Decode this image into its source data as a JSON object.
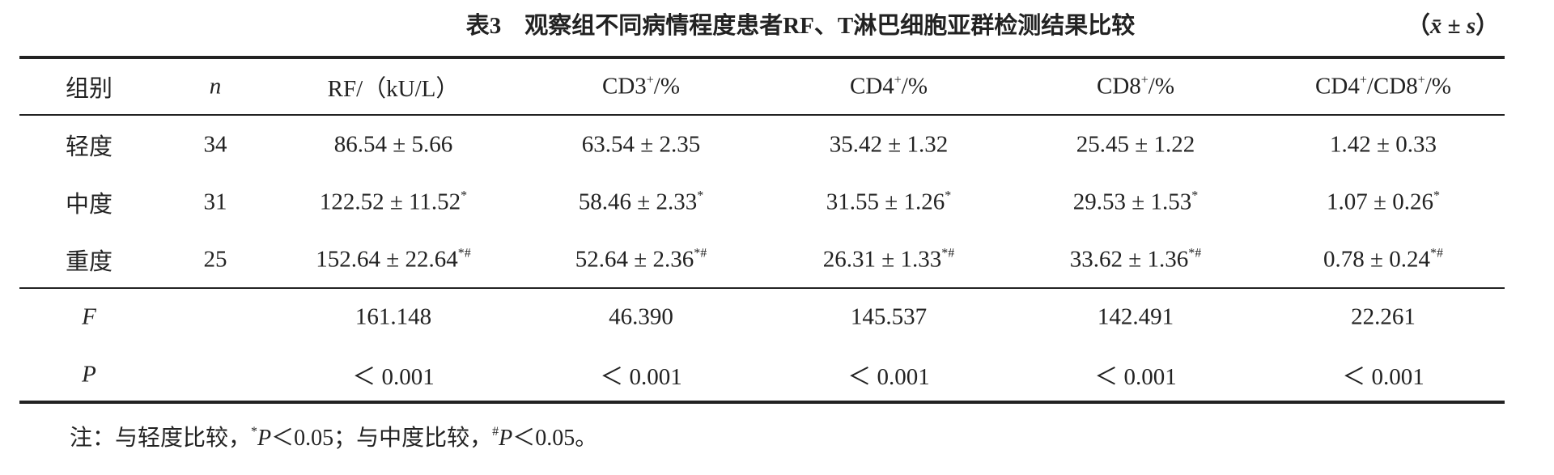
{
  "title": {
    "main": "表3　观察组不同病情程度患者RF、T淋巴细胞亚群检测结果比较",
    "unit": [
      {
        "text": "（"
      },
      {
        "text": "x̄",
        "italic": true
      },
      {
        "text": " ± "
      },
      {
        "text": "s",
        "italic": true
      },
      {
        "text": "）"
      }
    ]
  },
  "table": {
    "header": [
      [
        {
          "text": "组别"
        }
      ],
      [
        {
          "text": "n",
          "italic": true
        }
      ],
      [
        {
          "text": "RF/（kU/L）"
        }
      ],
      [
        {
          "text": "CD3"
        },
        {
          "sup": "+"
        },
        {
          "text": "/%"
        }
      ],
      [
        {
          "text": "CD4"
        },
        {
          "sup": "+"
        },
        {
          "text": "/%"
        }
      ],
      [
        {
          "text": "CD8"
        },
        {
          "sup": "+"
        },
        {
          "text": "/%"
        }
      ],
      [
        {
          "text": "CD4"
        },
        {
          "sup": "+"
        },
        {
          "text": "/CD8"
        },
        {
          "sup": "+"
        },
        {
          "text": "/%"
        }
      ]
    ],
    "rows": [
      [
        [
          {
            "text": "轻度"
          }
        ],
        [
          {
            "text": "34"
          }
        ],
        [
          {
            "text": "86.54 ± 5.66"
          }
        ],
        [
          {
            "text": "63.54 ± 2.35"
          }
        ],
        [
          {
            "text": "35.42 ± 1.32"
          }
        ],
        [
          {
            "text": "25.45 ± 1.22"
          }
        ],
        [
          {
            "text": "1.42 ± 0.33"
          }
        ]
      ],
      [
        [
          {
            "text": "中度"
          }
        ],
        [
          {
            "text": "31"
          }
        ],
        [
          {
            "text": "122.52 ± 11.52"
          },
          {
            "sup": "*"
          }
        ],
        [
          {
            "text": "58.46 ± 2.33"
          },
          {
            "sup": "*"
          }
        ],
        [
          {
            "text": "31.55 ± 1.26"
          },
          {
            "sup": "*"
          }
        ],
        [
          {
            "text": "29.53 ± 1.53"
          },
          {
            "sup": "*"
          }
        ],
        [
          {
            "text": "1.07 ± 0.26"
          },
          {
            "sup": "*"
          }
        ]
      ],
      [
        [
          {
            "text": "重度"
          }
        ],
        [
          {
            "text": "25"
          }
        ],
        [
          {
            "text": "152.64 ± 22.64"
          },
          {
            "sup": "*#"
          }
        ],
        [
          {
            "text": "52.64 ± 2.36"
          },
          {
            "sup": "*#"
          }
        ],
        [
          {
            "text": "26.31 ± 1.33"
          },
          {
            "sup": "*#"
          }
        ],
        [
          {
            "text": "33.62 ± 1.36"
          },
          {
            "sup": "*#"
          }
        ],
        [
          {
            "text": "0.78 ± 0.24"
          },
          {
            "sup": "*#"
          }
        ]
      ],
      [
        [
          {
            "text": "F",
            "italic": true
          }
        ],
        [],
        [
          {
            "text": "161.148"
          }
        ],
        [
          {
            "text": "46.390"
          }
        ],
        [
          {
            "text": "145.537"
          }
        ],
        [
          {
            "text": "142.491"
          }
        ],
        [
          {
            "text": "22.261"
          }
        ]
      ],
      [
        [
          {
            "text": "P",
            "italic": true
          }
        ],
        [],
        [
          {
            "text": "＜ 0.001"
          }
        ],
        [
          {
            "text": "＜ 0.001"
          }
        ],
        [
          {
            "text": "＜ 0.001"
          }
        ],
        [
          {
            "text": "＜ 0.001"
          }
        ],
        [
          {
            "text": "＜ 0.001"
          }
        ]
      ]
    ]
  },
  "note": [
    {
      "text": "注：与轻度比较，"
    },
    {
      "sup": "*"
    },
    {
      "text": "P",
      "italic": true
    },
    {
      "text": "＜0.05；与中度比较，"
    },
    {
      "sup": "#"
    },
    {
      "text": "P",
      "italic": true
    },
    {
      "text": "＜0.05。"
    }
  ]
}
